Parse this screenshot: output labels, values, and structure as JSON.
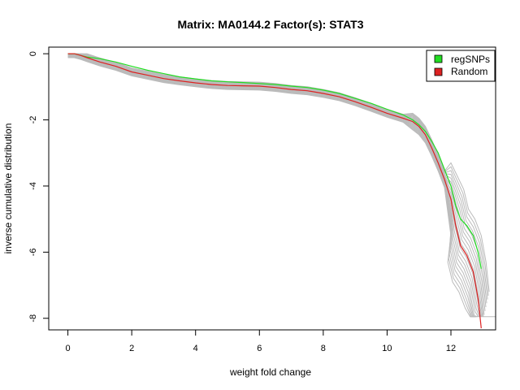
{
  "chart_data": {
    "type": "line",
    "title": "Matrix: MA0144.2 Factor(s): STAT3",
    "xlabel": "weight fold change",
    "ylabel": "inverse cumulative distribution",
    "xlim": [
      -0.6,
      13.4
    ],
    "ylim": [
      -8.35,
      0.2
    ],
    "x_ticks": [
      0,
      2,
      4,
      6,
      8,
      10,
      12
    ],
    "y_ticks": [
      0,
      -2,
      -4,
      -6,
      -8
    ],
    "grid": false,
    "legend_position": "top-right",
    "legend": [
      {
        "label": "regSNPs",
        "color": "#22dd22"
      },
      {
        "label": "Random",
        "color": "#dd2222"
      }
    ],
    "series": [
      {
        "name": "regSNPs",
        "color": "#22dd22",
        "x": [
          0,
          0.2,
          0.4,
          0.6,
          1.0,
          1.5,
          2.0,
          2.5,
          3.0,
          3.5,
          4.0,
          4.5,
          5.0,
          5.5,
          6.0,
          6.5,
          7.0,
          7.5,
          8.0,
          8.5,
          9.0,
          9.5,
          10.0,
          10.5,
          10.8,
          11.0,
          11.2,
          11.4,
          11.6,
          11.8,
          12.0,
          12.15,
          12.3,
          12.5,
          12.7,
          12.85,
          12.95
        ],
        "y": [
          0,
          0,
          -0.05,
          -0.1,
          -0.15,
          -0.25,
          -0.38,
          -0.5,
          -0.6,
          -0.7,
          -0.76,
          -0.82,
          -0.85,
          -0.87,
          -0.9,
          -0.93,
          -0.98,
          -1.02,
          -1.1,
          -1.2,
          -1.35,
          -1.5,
          -1.68,
          -1.85,
          -2.0,
          -2.15,
          -2.35,
          -2.65,
          -3.0,
          -3.5,
          -4.0,
          -4.6,
          -5.0,
          -5.2,
          -5.5,
          -6.0,
          -6.5
        ]
      },
      {
        "name": "Random",
        "color": "#dd2222",
        "x": [
          0,
          0.2,
          0.4,
          0.6,
          1.0,
          1.5,
          2.0,
          2.5,
          3.0,
          3.5,
          4.0,
          4.5,
          5.0,
          5.5,
          6.0,
          6.5,
          7.0,
          7.5,
          8.0,
          8.5,
          9.0,
          9.5,
          10.0,
          10.5,
          10.8,
          11.0,
          11.2,
          11.4,
          11.6,
          11.8,
          12.0,
          12.15,
          12.3,
          12.5,
          12.7,
          12.85,
          12.95
        ],
        "y": [
          0,
          0,
          -0.05,
          -0.12,
          -0.25,
          -0.38,
          -0.55,
          -0.65,
          -0.75,
          -0.82,
          -0.88,
          -0.93,
          -0.96,
          -0.97,
          -0.98,
          -1.02,
          -1.08,
          -1.12,
          -1.2,
          -1.3,
          -1.45,
          -1.62,
          -1.8,
          -1.95,
          -2.05,
          -2.2,
          -2.45,
          -2.85,
          -3.3,
          -3.8,
          -4.4,
          -5.2,
          -5.8,
          -6.1,
          -6.6,
          -7.4,
          -8.3
        ]
      }
    ],
    "random_background": {
      "name": "",
      "color": "#bbbbbb",
      "count": 20
    }
  }
}
